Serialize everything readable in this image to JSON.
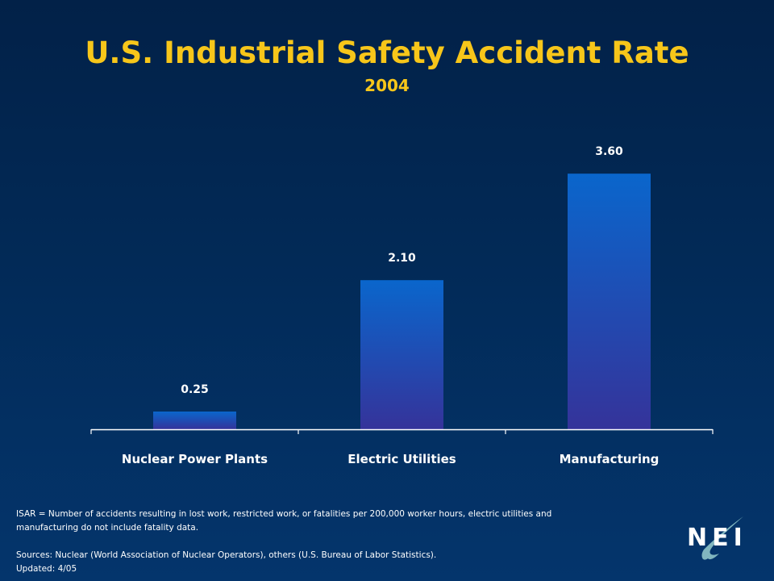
{
  "title": "U.S. Industrial Safety Accident Rate",
  "subtitle": "2004",
  "chart_data": {
    "type": "bar",
    "title": "U.S. Industrial Safety Accident Rate",
    "subtitle": "2004",
    "categories": [
      "Nuclear Power Plants",
      "Electric Utilities",
      "Manufacturing"
    ],
    "values": [
      0.25,
      2.1,
      3.6
    ],
    "data_labels": [
      "0.25",
      "2.10",
      "3.60"
    ],
    "xlabel": "",
    "ylabel": "",
    "ylim": [
      0,
      4.0
    ],
    "grid": false,
    "legend": "none",
    "bar_color_top": "#0a66cc",
    "bar_color_bottom": "#35339a"
  },
  "footnotes": {
    "definition": "ISAR = Number of accidents resulting in lost work, restricted work, or fatalities per 200,000 worker hours, electric utilities and manufacturing do not include fatality data.",
    "sources": "Sources:  Nuclear (World Association of Nuclear Operators), others (U.S. Bureau of Labor Statistics).",
    "updated": "Updated: 4/05"
  },
  "logo": {
    "text": "NEI",
    "icon": "nei-logo-icon"
  },
  "colors": {
    "title": "#f7c61a",
    "text": "#ffffff",
    "background": "#022a57"
  }
}
